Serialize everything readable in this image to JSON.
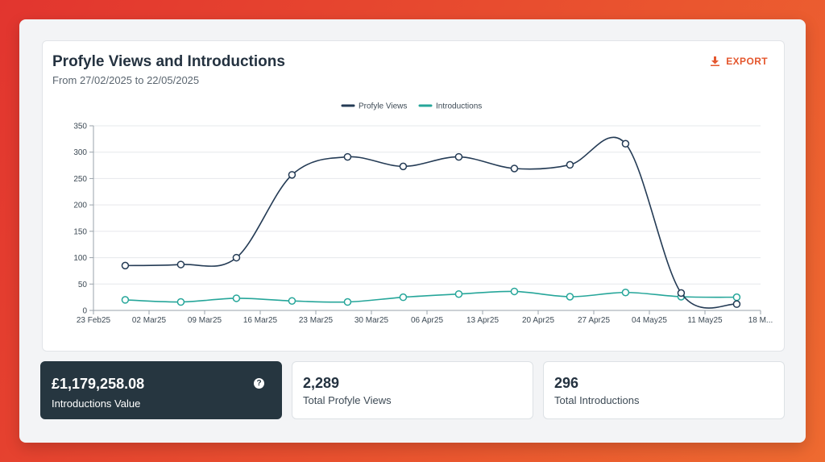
{
  "header": {
    "title": "Profyle Views and Introductions",
    "subtitle": "From 27/02/2025 to 22/05/2025",
    "export_label": "EXPORT"
  },
  "colors": {
    "accent": "#e4572e",
    "profyle_views": "#243b55",
    "introductions": "#26a69a",
    "dark_card": "#263640"
  },
  "chart_data": {
    "type": "line",
    "x_ticks": [
      "23 Feb25",
      "02 Mar25",
      "09 Mar25",
      "16 Mar25",
      "23 Mar25",
      "30 Mar25",
      "06 Apr25",
      "13 Apr25",
      "20 Apr25",
      "27 Apr25",
      "04 May25",
      "11 May25",
      "18 M..."
    ],
    "y_ticks": [
      0,
      50,
      100,
      150,
      200,
      250,
      300,
      350
    ],
    "ylim": [
      0,
      350
    ],
    "x": [
      "2025-02-27",
      "2025-03-06",
      "2025-03-13",
      "2025-03-20",
      "2025-03-27",
      "2025-04-03",
      "2025-04-10",
      "2025-04-17",
      "2025-04-24",
      "2025-05-01",
      "2025-05-08",
      "2025-05-15"
    ],
    "series": [
      {
        "name": "Profyle Views",
        "color": "#243b55",
        "values": [
          85,
          87,
          100,
          257,
          291,
          273,
          291,
          269,
          276,
          316,
          33,
          12
        ]
      },
      {
        "name": "Introductions",
        "color": "#26a69a",
        "values": [
          20,
          16,
          23,
          18,
          16,
          25,
          31,
          36,
          26,
          34,
          26,
          25
        ]
      }
    ],
    "legend_position": "top-center",
    "grid": true
  },
  "stats": [
    {
      "value": "£1,179,258.08",
      "label": "Introductions Value",
      "help": "?"
    },
    {
      "value": "2,289",
      "label": "Total Profyle Views"
    },
    {
      "value": "296",
      "label": "Total Introductions"
    }
  ]
}
